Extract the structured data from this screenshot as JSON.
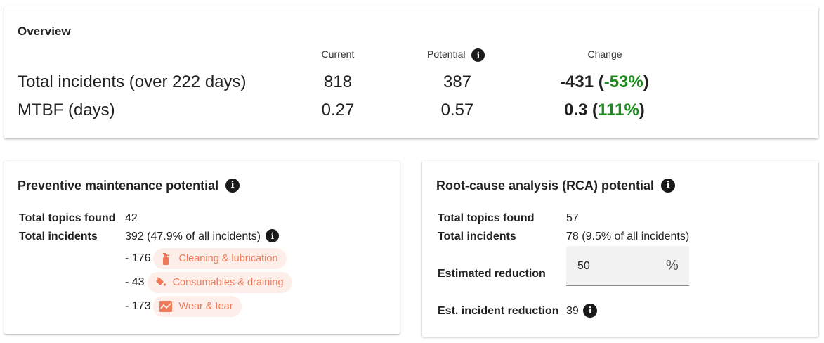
{
  "overview": {
    "title": "Overview",
    "headers": {
      "current": "Current",
      "potential": "Potential",
      "change": "Change"
    },
    "rows": [
      {
        "label": "Total incidents (over 222 days)",
        "current": "818",
        "potential": "387",
        "change_abs": "-431",
        "change_open": " (",
        "change_pct": "-53%",
        "change_close": ")"
      },
      {
        "label": "MTBF (days)",
        "current": "0.27",
        "potential": "0.57",
        "change_abs": "0.3",
        "change_open": " (",
        "change_pct": "111%",
        "change_close": ")"
      }
    ]
  },
  "preventive": {
    "title": "Preventive maintenance potential",
    "topics_label": "Total topics found",
    "topics_value": "42",
    "incidents_label": "Total incidents",
    "incidents_value": "392 (47.9% of all incidents)",
    "breakdown": [
      {
        "count": "- 176",
        "label": "Cleaning & lubrication",
        "icon": "spray-bottle-icon"
      },
      {
        "count": "- 43",
        "label": "Consumables & draining",
        "icon": "paint-bucket-icon"
      },
      {
        "count": "- 173",
        "label": "Wear & tear",
        "icon": "wear-chart-icon"
      }
    ]
  },
  "rca": {
    "title": "Root-cause analysis (RCA) potential",
    "topics_label": "Total topics found",
    "topics_value": "57",
    "incidents_label": "Total incidents",
    "incidents_value": "78 (9.5% of all incidents)",
    "reduction_label": "Estimated reduction",
    "reduction_value": "50",
    "reduction_unit": "%",
    "est_label": "Est. incident reduction",
    "est_value": "39"
  },
  "colors": {
    "green": "#1c8a1c",
    "chip_text": "#f07a58",
    "chip_bg": "#fdeee9"
  }
}
